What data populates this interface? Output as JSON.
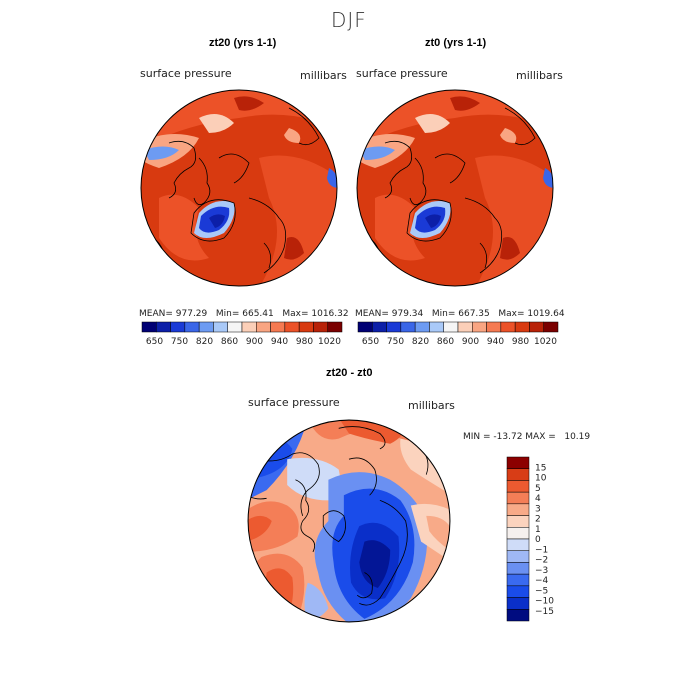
{
  "season": "DJF",
  "colors": {
    "land_outline": "#000000",
    "abs_scale": [
      "#000074",
      "#0c1fa8",
      "#1a3ad6",
      "#3a66e8",
      "#6d9bf2",
      "#a9c9f8",
      "#f5f5f5",
      "#fbcfb8",
      "#f9a582",
      "#f57a52",
      "#ec5228",
      "#d83a10",
      "#b82208",
      "#7a0000"
    ],
    "diff_scale": [
      "#000c80",
      "#0a2fc9",
      "#1a4cea",
      "#3a6af0",
      "#6a90f2",
      "#9fb8f5",
      "#cfdcf8",
      "#f5f0ee",
      "#fbd3be",
      "#f8aa88",
      "#f47e57",
      "#ec5a30",
      "#d83d16",
      "#8c0000"
    ]
  },
  "panels": [
    {
      "id": "zt20",
      "title": "zt20 (yrs 1-1)",
      "var_label": "surface pressure",
      "units": "millibars",
      "stats": {
        "mean_label": "MEAN=",
        "mean": "977.29",
        "min_label": "Min=",
        "min": "665.41",
        "max_label": "Max=",
        "max": "1016.32"
      }
    },
    {
      "id": "zt0",
      "title": "zt0 (yrs 1-1)",
      "var_label": "surface pressure",
      "units": "millibars",
      "stats": {
        "mean_label": "MEAN=",
        "mean": "979.34",
        "min_label": "Min=",
        "min": "667.35",
        "max_label": "Max=",
        "max": "1019.64"
      }
    }
  ],
  "diff_panel": {
    "title": "zt20 - zt0",
    "var_label": "surface pressure",
    "units": "millibars",
    "stats_text": "MIN = -13.72 MAX =   10.19"
  },
  "chart_data": [
    {
      "type": "heatmap",
      "title": "zt20 (yrs 1-1)",
      "variable": "surface pressure",
      "units": "millibars",
      "projection": "north polar stereographic",
      "mean": 977.29,
      "min": 665.41,
      "max": 1016.32,
      "colorbar_ticks": [
        "650",
        "750",
        "820",
        "860",
        "900",
        "940",
        "980",
        "1020"
      ]
    },
    {
      "type": "heatmap",
      "title": "zt0 (yrs 1-1)",
      "variable": "surface pressure",
      "units": "millibars",
      "projection": "north polar stereographic",
      "mean": 979.34,
      "min": 667.35,
      "max": 1019.64,
      "colorbar_ticks": [
        "650",
        "750",
        "820",
        "860",
        "900",
        "940",
        "980",
        "1020"
      ]
    },
    {
      "type": "heatmap",
      "title": "zt20 - zt0",
      "variable": "surface pressure",
      "units": "millibars",
      "projection": "north polar stereographic",
      "min": -13.72,
      "max": 10.19,
      "colorbar_ticks": [
        "15",
        "10",
        "5",
        "4",
        "3",
        "2",
        "1",
        "0",
        "−1",
        "−2",
        "−3",
        "−4",
        "−5",
        "−10",
        "−15"
      ]
    }
  ]
}
